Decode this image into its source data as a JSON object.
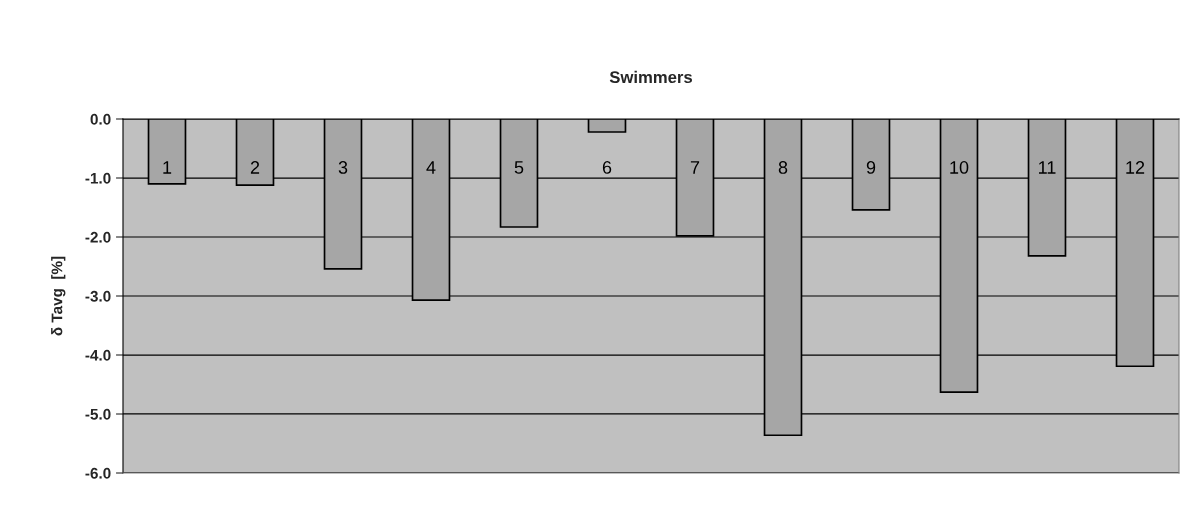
{
  "chart_data": {
    "type": "bar",
    "title": "Swimmers",
    "ylabel": "δ Tavg  [%]",
    "categories": [
      "1",
      "2",
      "3",
      "4",
      "5",
      "6",
      "7",
      "8",
      "9",
      "10",
      "11",
      "12"
    ],
    "values": [
      -1.1,
      -1.12,
      -2.54,
      -3.07,
      -1.83,
      -0.22,
      -1.98,
      -5.36,
      -1.54,
      -4.63,
      -2.32,
      -4.19
    ],
    "color": "#a6a6a6",
    "ylim": [
      -6,
      0
    ],
    "yticks": [
      {
        "value": -6,
        "label": "-6.0"
      },
      {
        "value": -5,
        "label": "-5.0"
      },
      {
        "value": -4,
        "label": "-4.0"
      },
      {
        "value": -3,
        "label": "-3.0"
      },
      {
        "value": -2,
        "label": "-2.0"
      },
      {
        "value": -1,
        "label": "-1.0"
      },
      {
        "value": 0,
        "label": "0.0"
      }
    ],
    "grid": "y"
  }
}
